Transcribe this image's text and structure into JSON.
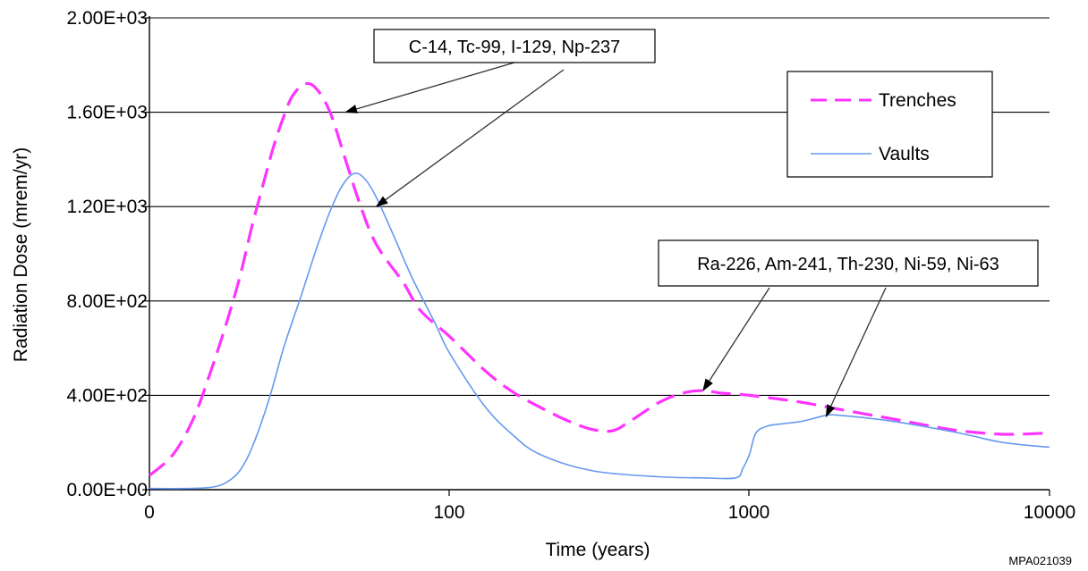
{
  "chart_data": {
    "type": "line",
    "xlabel": "Time (years)",
    "ylabel": "Radiation Dose (mrem/yr)",
    "x_scale": "log",
    "x_ticks": [
      "0",
      "100",
      "1000",
      "10000"
    ],
    "y_ticks": [
      "0.00E+00",
      "4.00E+02",
      "8.00E+02",
      "1.20E+03",
      "1.60E+03",
      "2.00E+03"
    ],
    "ylim": [
      0,
      2000
    ],
    "grid": "horizontal",
    "legend_position": "top-right",
    "series": [
      {
        "name": "Trenches",
        "color": "#ff33ff",
        "style": "dashed",
        "points": [
          [
            10,
            60
          ],
          [
            12,
            150
          ],
          [
            14,
            300
          ],
          [
            16,
            500
          ],
          [
            18,
            700
          ],
          [
            20,
            900
          ],
          [
            22,
            1120
          ],
          [
            24,
            1300
          ],
          [
            26,
            1460
          ],
          [
            28,
            1580
          ],
          [
            30,
            1670
          ],
          [
            33,
            1720
          ],
          [
            36,
            1700
          ],
          [
            40,
            1600
          ],
          [
            45,
            1400
          ],
          [
            50,
            1220
          ],
          [
            57,
            1040
          ],
          [
            70,
            880
          ],
          [
            80,
            760
          ],
          [
            100,
            650
          ],
          [
            130,
            510
          ],
          [
            160,
            420
          ],
          [
            200,
            350
          ],
          [
            250,
            290
          ],
          [
            300,
            255
          ],
          [
            350,
            250
          ],
          [
            400,
            290
          ],
          [
            500,
            370
          ],
          [
            600,
            410
          ],
          [
            700,
            420
          ],
          [
            800,
            410
          ],
          [
            1000,
            400
          ],
          [
            1500,
            370
          ],
          [
            2000,
            340
          ],
          [
            3000,
            300
          ],
          [
            4000,
            270
          ],
          [
            5000,
            250
          ],
          [
            7000,
            235
          ],
          [
            10000,
            240
          ]
        ]
      },
      {
        "name": "Vaults",
        "color": "#6699ee",
        "style": "solid",
        "points": [
          [
            10,
            5
          ],
          [
            13,
            5
          ],
          [
            16,
            10
          ],
          [
            18,
            30
          ],
          [
            20,
            80
          ],
          [
            22,
            180
          ],
          [
            25,
            380
          ],
          [
            28,
            600
          ],
          [
            32,
            820
          ],
          [
            36,
            1020
          ],
          [
            40,
            1180
          ],
          [
            44,
            1290
          ],
          [
            48,
            1340
          ],
          [
            52,
            1320
          ],
          [
            57,
            1240
          ],
          [
            65,
            1080
          ],
          [
            75,
            900
          ],
          [
            90,
            700
          ],
          [
            100,
            580
          ],
          [
            130,
            360
          ],
          [
            160,
            240
          ],
          [
            200,
            150
          ],
          [
            300,
            80
          ],
          [
            500,
            55
          ],
          [
            700,
            50
          ],
          [
            900,
            50
          ],
          [
            950,
            90
          ],
          [
            1000,
            150
          ],
          [
            1050,
            240
          ],
          [
            1150,
            270
          ],
          [
            1300,
            280
          ],
          [
            1500,
            290
          ],
          [
            1800,
            315
          ],
          [
            2000,
            315
          ],
          [
            3000,
            290
          ],
          [
            5000,
            240
          ],
          [
            7000,
            200
          ],
          [
            10000,
            180
          ]
        ]
      }
    ],
    "annotations": [
      {
        "text": "C-14, Tc-99, I-129, Np-237",
        "targets": [
          [
            45,
            1600
          ],
          [
            57,
            1200
          ]
        ]
      },
      {
        "text": "Ra-226, Am-241, Th-230, Ni-59, Ni-63",
        "targets": [
          [
            700,
            420
          ],
          [
            1800,
            310
          ]
        ]
      }
    ]
  },
  "credit": "MPA021039"
}
